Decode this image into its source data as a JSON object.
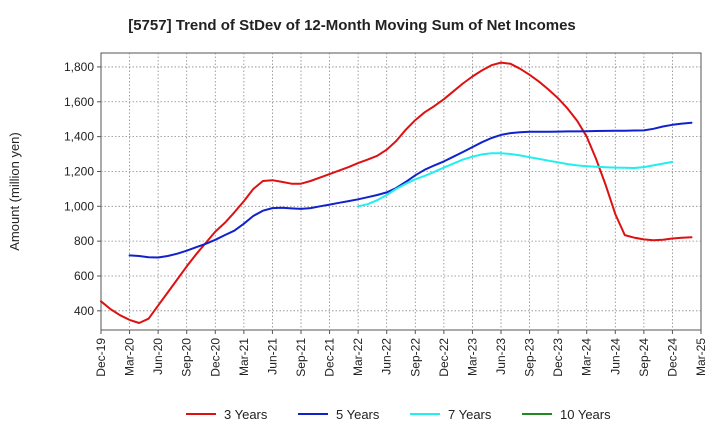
{
  "chart_data": {
    "type": "line",
    "title": "[5757]  Trend of StDev of 12-Month Moving Sum of Net Incomes",
    "xlabel": "",
    "ylabel": "Amount (million yen)",
    "ylim": [
      290,
      1880
    ],
    "yticks": [
      400,
      600,
      800,
      1000,
      1200,
      1400,
      1600,
      1800
    ],
    "ytick_labels": [
      "400",
      "600",
      "800",
      "1,000",
      "1,200",
      "1,400",
      "1,600",
      "1,800"
    ],
    "xtick_labels": [
      "Dec-19",
      "Mar-20",
      "Jun-20",
      "Sep-20",
      "Dec-20",
      "Mar-21",
      "Jun-21",
      "Sep-21",
      "Dec-21",
      "Mar-22",
      "Jun-22",
      "Sep-22",
      "Dec-22",
      "Mar-23",
      "Jun-23",
      "Sep-23",
      "Dec-23",
      "Mar-24",
      "Jun-24",
      "Sep-24",
      "Dec-24",
      "Mar-25"
    ],
    "grid": true,
    "legend_position": "bottom",
    "series": [
      {
        "name": "3 Years",
        "color": "#dd1111",
        "start_index": 0,
        "values": [
          455,
          410,
          375,
          348,
          330,
          355,
          430,
          505,
          580,
          655,
          725,
          790,
          855,
          905,
          965,
          1030,
          1100,
          1145,
          1150,
          1140,
          1130,
          1130,
          1145,
          1165,
          1185,
          1205,
          1225,
          1248,
          1268,
          1290,
          1325,
          1375,
          1440,
          1495,
          1540,
          1575,
          1615,
          1660,
          1705,
          1745,
          1780,
          1810,
          1825,
          1818,
          1790,
          1755,
          1715,
          1670,
          1620,
          1560,
          1490,
          1400,
          1270,
          1120,
          955,
          835,
          820,
          810,
          805,
          808,
          815,
          820,
          822
        ]
      },
      {
        "name": "5 Years",
        "color": "#1122cc",
        "start_index": 3,
        "values": [
          718,
          715,
          708,
          706,
          715,
          728,
          745,
          765,
          785,
          808,
          835,
          860,
          900,
          945,
          975,
          990,
          992,
          988,
          985,
          990,
          1000,
          1010,
          1020,
          1030,
          1040,
          1052,
          1065,
          1080,
          1105,
          1140,
          1178,
          1210,
          1235,
          1258,
          1285,
          1312,
          1340,
          1368,
          1392,
          1410,
          1420,
          1425,
          1428,
          1428,
          1428,
          1429,
          1430,
          1430,
          1431,
          1432,
          1433,
          1434,
          1434,
          1435,
          1436,
          1445,
          1458,
          1468,
          1475,
          1480
        ]
      },
      {
        "name": "7 Years",
        "color": "#22eeee",
        "start_index": 27,
        "values": [
          1000,
          1012,
          1035,
          1065,
          1100,
          1130,
          1155,
          1175,
          1198,
          1222,
          1245,
          1268,
          1285,
          1298,
          1305,
          1305,
          1300,
          1292,
          1282,
          1272,
          1262,
          1252,
          1242,
          1235,
          1230,
          1227,
          1224,
          1222,
          1221,
          1220,
          1225,
          1235,
          1245,
          1255
        ]
      },
      {
        "name": "10 Years",
        "color": "#228822",
        "start_index": 0,
        "values": []
      }
    ]
  }
}
